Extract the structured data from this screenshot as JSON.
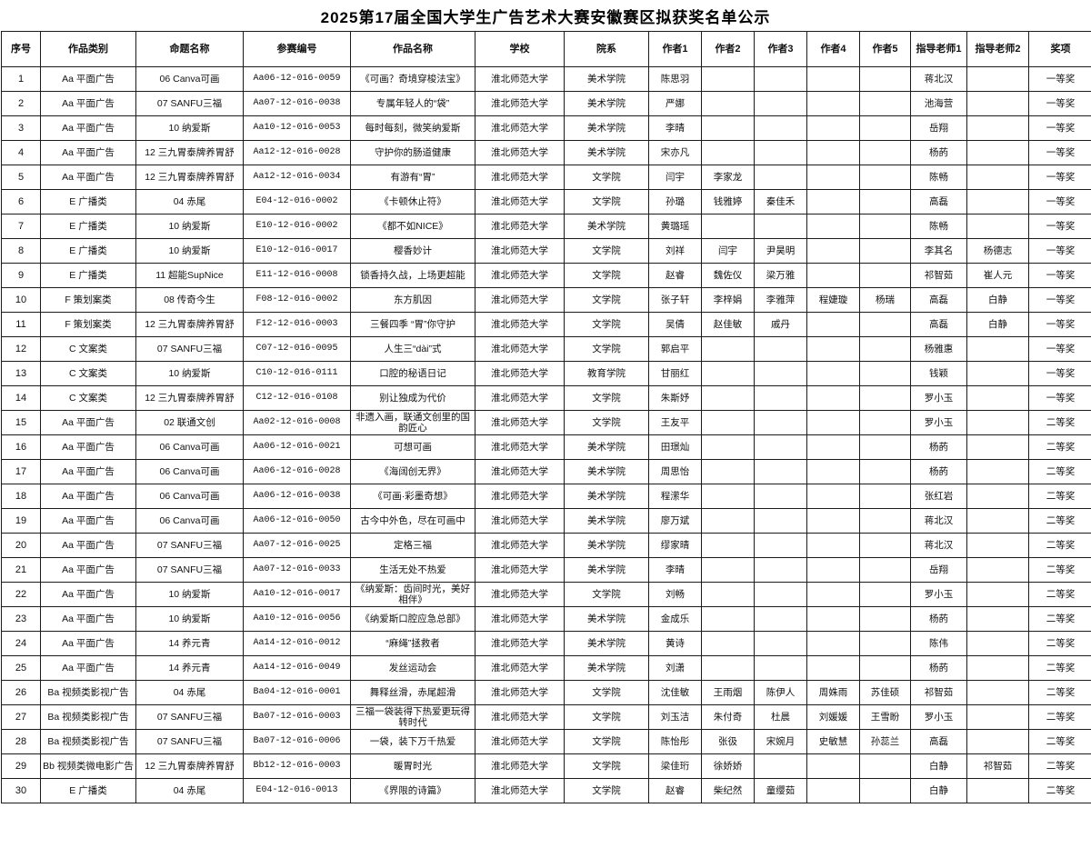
{
  "title": "2025第17届全国大学生广告艺术大赛安徽赛区拟获奖名单公示",
  "table": {
    "columns": [
      "序号",
      "作品类别",
      "命题名称",
      "参赛编号",
      "作品名称",
      "学校",
      "院系",
      "作者1",
      "作者2",
      "作者3",
      "作者4",
      "作者5",
      "指导老师1",
      "指导老师2",
      "奖项"
    ],
    "rows": [
      [
        "1",
        "Aa 平面广告",
        "06 Canva可画",
        "Aa06-12-016-0059",
        "《可画？奇境穿梭法宝》",
        "淮北师范大学",
        "美术学院",
        "陈思羽",
        "",
        "",
        "",
        "",
        "蒋北汉",
        "",
        "一等奖"
      ],
      [
        "2",
        "Aa 平面广告",
        "07 SANFU三福",
        "Aa07-12-016-0038",
        "专属年轻人的“袋”",
        "淮北师范大学",
        "美术学院",
        "严娜",
        "",
        "",
        "",
        "",
        "池海营",
        "",
        "一等奖"
      ],
      [
        "3",
        "Aa 平面广告",
        "10 纳爱斯",
        "Aa10-12-016-0053",
        "每时每刻，微笑纳爱斯",
        "淮北师范大学",
        "美术学院",
        "李晴",
        "",
        "",
        "",
        "",
        "岳翔",
        "",
        "一等奖"
      ],
      [
        "4",
        "Aa 平面广告",
        "12 三九胃泰牌养胃舒",
        "Aa12-12-016-0028",
        "守护你的肠道健康",
        "淮北师范大学",
        "美术学院",
        "宋亦凡",
        "",
        "",
        "",
        "",
        "杨菂",
        "",
        "一等奖"
      ],
      [
        "5",
        "Aa 平面广告",
        "12 三九胃泰牌养胃舒",
        "Aa12-12-016-0034",
        "有游有“胃”",
        "淮北师范大学",
        "文学院",
        "闫宇",
        "李家龙",
        "",
        "",
        "",
        "陈畅",
        "",
        "一等奖"
      ],
      [
        "6",
        "E 广播类",
        "04 赤尾",
        "E04-12-016-0002",
        "《卡顿休止符》",
        "淮北师范大学",
        "文学院",
        "孙璐",
        "钱雅婷",
        "秦佳禾",
        "",
        "",
        "高磊",
        "",
        "一等奖"
      ],
      [
        "7",
        "E 广播类",
        "10 纳爱斯",
        "E10-12-016-0002",
        "《都不如NICE》",
        "淮北师范大学",
        "美术学院",
        "黄璐瑶",
        "",
        "",
        "",
        "",
        "陈畅",
        "",
        "一等奖"
      ],
      [
        "8",
        "E 广播类",
        "10 纳爱斯",
        "E10-12-016-0017",
        "樱香妙计",
        "淮北师范大学",
        "文学院",
        "刘祥",
        "闫宇",
        "尹昊明",
        "",
        "",
        "李其名",
        "杨德志",
        "一等奖"
      ],
      [
        "9",
        "E 广播类",
        "11 超能SupNice",
        "E11-12-016-0008",
        "锁香持久战，上场更超能",
        "淮北师范大学",
        "文学院",
        "赵睿",
        "魏佐仪",
        "梁万雅",
        "",
        "",
        "祁智茹",
        "崔人元",
        "一等奖"
      ],
      [
        "10",
        "F 策划案类",
        "08 传奇今生",
        "F08-12-016-0002",
        "东方肌因",
        "淮北师范大学",
        "文学院",
        "张子轩",
        "李梓娟",
        "李雅萍",
        "程婕璇",
        "杨瑞",
        "高磊",
        "白静",
        "一等奖"
      ],
      [
        "11",
        "F 策划案类",
        "12 三九胃泰牌养胃舒",
        "F12-12-016-0003",
        "三餐四季 “胃”你守护",
        "淮北师范大学",
        "文学院",
        "吴倩",
        "赵佳敏",
        "戚丹",
        "",
        "",
        "高磊",
        "白静",
        "一等奖"
      ],
      [
        "12",
        "C 文案类",
        "07 SANFU三福",
        "C07-12-016-0095",
        "人生三“dài”式",
        "淮北师范大学",
        "文学院",
        "郭启平",
        "",
        "",
        "",
        "",
        "杨雅惠",
        "",
        "一等奖"
      ],
      [
        "13",
        "C 文案类",
        "10 纳爱斯",
        "C10-12-016-0111",
        "口腔的秘语日记",
        "淮北师范大学",
        "教育学院",
        "甘丽红",
        "",
        "",
        "",
        "",
        "钱颖",
        "",
        "一等奖"
      ],
      [
        "14",
        "C 文案类",
        "12 三九胃泰牌养胃舒",
        "C12-12-016-0108",
        "别让独成为代价",
        "淮北师范大学",
        "文学院",
        "朱斯妤",
        "",
        "",
        "",
        "",
        "罗小玉",
        "",
        "一等奖"
      ],
      [
        "15",
        "Aa 平面广告",
        "02 联通文创",
        "Aa02-12-016-0008",
        "非遗入画，联通文创里的国韵匠心",
        "淮北师范大学",
        "文学院",
        "王友平",
        "",
        "",
        "",
        "",
        "罗小玉",
        "",
        "二等奖"
      ],
      [
        "16",
        "Aa 平面广告",
        "06 Canva可画",
        "Aa06-12-016-0021",
        "可想可画",
        "淮北师范大学",
        "美术学院",
        "田璟灿",
        "",
        "",
        "",
        "",
        "杨菂",
        "",
        "二等奖"
      ],
      [
        "17",
        "Aa 平面广告",
        "06 Canva可画",
        "Aa06-12-016-0028",
        "《海阔创无界》",
        "淮北师范大学",
        "美术学院",
        "周思怡",
        "",
        "",
        "",
        "",
        "杨菂",
        "",
        "二等奖"
      ],
      [
        "18",
        "Aa 平面广告",
        "06 Canva可画",
        "Aa06-12-016-0038",
        "《可画·彩墨奇想》",
        "淮北师范大学",
        "美术学院",
        "程潆华",
        "",
        "",
        "",
        "",
        "张红岩",
        "",
        "二等奖"
      ],
      [
        "19",
        "Aa 平面广告",
        "06 Canva可画",
        "Aa06-12-016-0050",
        "古今中外色，尽在可画中",
        "淮北师范大学",
        "美术学院",
        "廖万斌",
        "",
        "",
        "",
        "",
        "蒋北汉",
        "",
        "二等奖"
      ],
      [
        "20",
        "Aa 平面广告",
        "07 SANFU三福",
        "Aa07-12-016-0025",
        "定格三福",
        "淮北师范大学",
        "美术学院",
        "缪家晴",
        "",
        "",
        "",
        "",
        "蒋北汉",
        "",
        "二等奖"
      ],
      [
        "21",
        "Aa 平面广告",
        "07 SANFU三福",
        "Aa07-12-016-0033",
        "生活无处不热爱",
        "淮北师范大学",
        "美术学院",
        "李晴",
        "",
        "",
        "",
        "",
        "岳翔",
        "",
        "二等奖"
      ],
      [
        "22",
        "Aa 平面广告",
        "10 纳爱斯",
        "Aa10-12-016-0017",
        "《纳爱斯：齿间时光，美好相伴》",
        "淮北师范大学",
        "文学院",
        "刘畅",
        "",
        "",
        "",
        "",
        "罗小玉",
        "",
        "二等奖"
      ],
      [
        "23",
        "Aa 平面广告",
        "10 纳爱斯",
        "Aa10-12-016-0056",
        "《纳爱斯口腔应急总部》",
        "淮北师范大学",
        "美术学院",
        "金成乐",
        "",
        "",
        "",
        "",
        "杨菂",
        "",
        "二等奖"
      ],
      [
        "24",
        "Aa 平面广告",
        "14 养元青",
        "Aa14-12-016-0012",
        "“麻绳”拯救者",
        "淮北师范大学",
        "美术学院",
        "黄诗",
        "",
        "",
        "",
        "",
        "陈伟",
        "",
        "二等奖"
      ],
      [
        "25",
        "Aa 平面广告",
        "14 养元青",
        "Aa14-12-016-0049",
        "发丝运动会",
        "淮北师范大学",
        "美术学院",
        "刘潇",
        "",
        "",
        "",
        "",
        "杨菂",
        "",
        "二等奖"
      ],
      [
        "26",
        "Ba 视频类影视广告",
        "04 赤尾",
        "Ba04-12-016-0001",
        "舞释丝滑，赤尾超滑",
        "淮北师范大学",
        "文学院",
        "沈佳敏",
        "王雨烟",
        "陈伊人",
        "周姝雨",
        "苏佳硕",
        "祁智茹",
        "",
        "二等奖"
      ],
      [
        "27",
        "Ba 视频类影视广告",
        "07 SANFU三福",
        "Ba07-12-016-0003",
        "三福一袋装得下热爱更玩得转时代",
        "淮北师范大学",
        "文学院",
        "刘玉洁",
        "朱付奇",
        "杜晨",
        "刘媛媛",
        "王雪盼",
        "罗小玉",
        "",
        "二等奖"
      ],
      [
        "28",
        "Ba 视频类影视广告",
        "07 SANFU三福",
        "Ba07-12-016-0006",
        "一袋，装下万千热爱",
        "淮北师范大学",
        "文学院",
        "陈怡彤",
        "张彶",
        "宋婉月",
        "史敏慧",
        "孙蕊兰",
        "高磊",
        "",
        "二等奖"
      ],
      [
        "29",
        "Bb 视频类微电影广告",
        "12 三九胃泰牌养胃舒",
        "Bb12-12-016-0003",
        "暖胃时光",
        "淮北师范大学",
        "文学院",
        "梁佳珩",
        "徐娇娇",
        "",
        "",
        "",
        "白静",
        "祁智茹",
        "二等奖"
      ],
      [
        "30",
        "E 广播类",
        "04 赤尾",
        "E04-12-016-0013",
        "《界限的诗篇》",
        "淮北师范大学",
        "文学院",
        "赵睿",
        "柴纪然",
        "童缨茹",
        "",
        "",
        "白静",
        "",
        "二等奖"
      ]
    ]
  }
}
